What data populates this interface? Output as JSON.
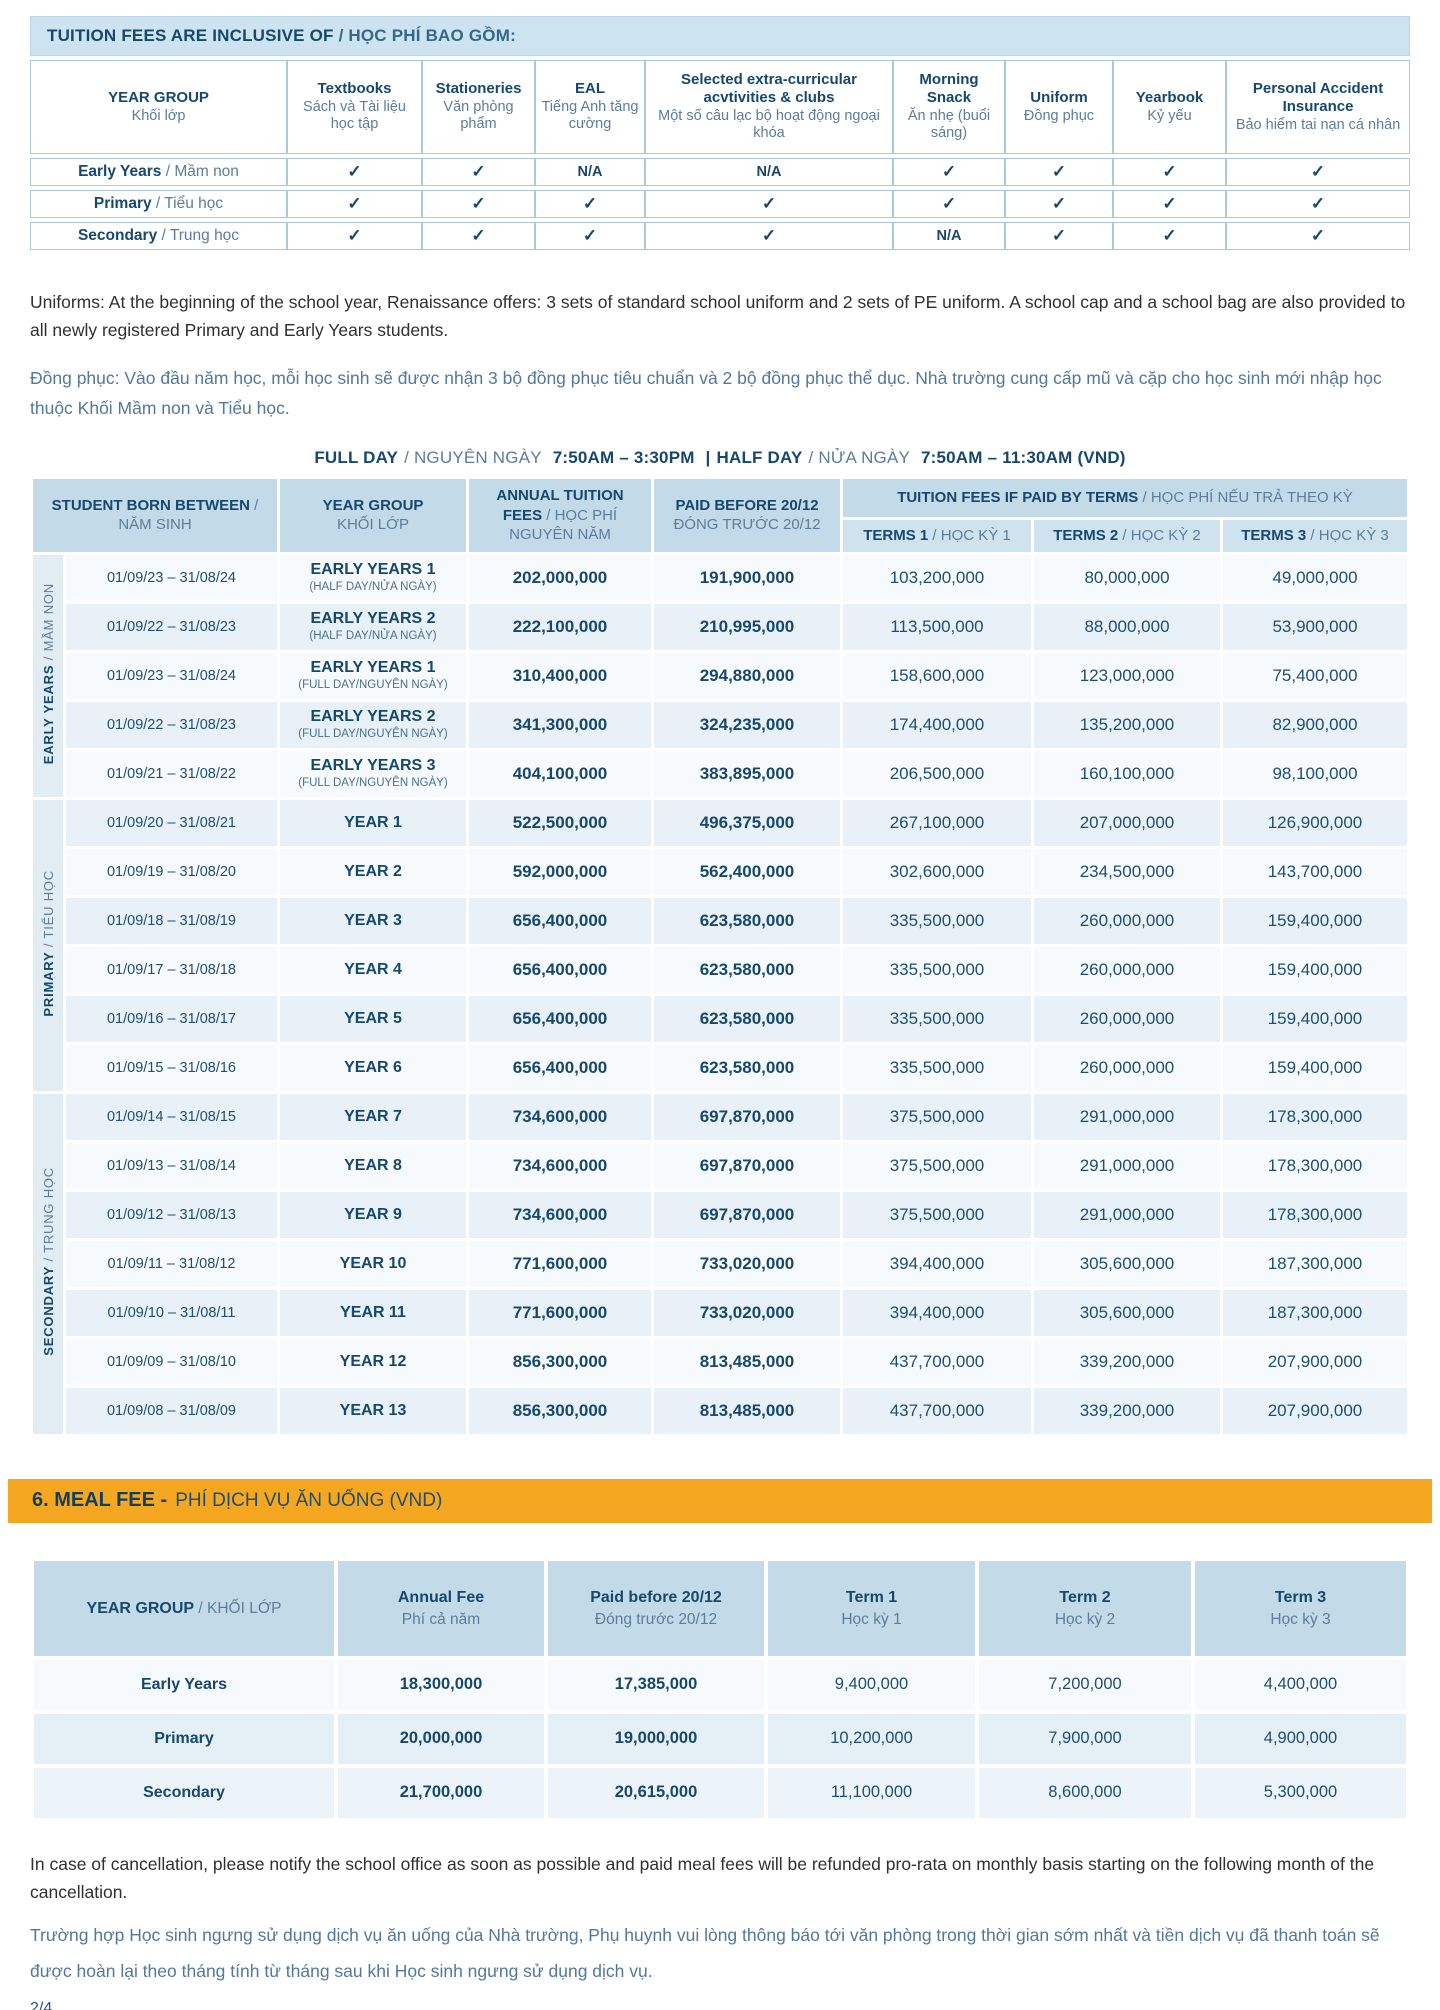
{
  "inclusive": {
    "title": {
      "en": "TUITION FEES ARE INCLUSIVE OF",
      "vi": " / HỌC PHÍ BAO GỒM:"
    },
    "columns": [
      {
        "en": "YEAR GROUP",
        "vi": "Khối lớp"
      },
      {
        "en": "Textbooks",
        "vi": "Sách và Tài liệu học tập"
      },
      {
        "en": "Stationeries",
        "vi": "Văn phòng phẩm"
      },
      {
        "en": "EAL",
        "vi": "Tiếng Anh tăng cường"
      },
      {
        "en": "Selected extra-curricular acvtivities & clubs",
        "vi": "Một số câu lạc bộ hoạt động ngoại khóa"
      },
      {
        "en": "Morning Snack",
        "vi": "Ăn nhẹ (buổi sáng)"
      },
      {
        "en": "Uniform",
        "vi": "Đồng phục"
      },
      {
        "en": "Yearbook",
        "vi": "Kỷ yếu"
      },
      {
        "en": "Personal Accident Insurance",
        "vi": "Bảo hiểm tai nạn cá nhân"
      }
    ],
    "rows": [
      {
        "en": "Early Years",
        "vi": "Mầm non",
        "cells": [
          "✓",
          "✓",
          "N/A",
          "N/A",
          "✓",
          "✓",
          "✓",
          "✓"
        ]
      },
      {
        "en": "Primary",
        "vi": "Tiểu học",
        "cells": [
          "✓",
          "✓",
          "✓",
          "✓",
          "✓",
          "✓",
          "✓",
          "✓"
        ]
      },
      {
        "en": "Secondary",
        "vi": "Trung học",
        "cells": [
          "✓",
          "✓",
          "✓",
          "✓",
          "N/A",
          "✓",
          "✓",
          "✓"
        ]
      }
    ]
  },
  "notes": {
    "uniform_en": "Uniforms: At the beginning of the school year, Renaissance offers: 3 sets of standard school uniform and 2 sets of PE uniform. A school cap and a school bag are also provided to all newly registered Primary and Early Years students.",
    "uniform_vi": "Đồng phục: Vào đầu năm học, mỗi học sinh sẽ được nhận 3 bộ đồng phục tiêu chuẩn và 2 bộ đồng phục thể dục. Nhà trường cung cấp mũ và cặp cho học sinh mới nhập học thuộc Khối Mầm non và Tiểu học."
  },
  "schedule": {
    "full_en": "FULL DAY",
    "full_vi": "/ NGUYÊN NGÀY",
    "full_time": "7:50AM – 3:30PM",
    "divider": "|",
    "half_en": "HALF DAY",
    "half_vi": "/ NỬA NGÀY",
    "half_time": "7:50AM – 11:30AM (VND)"
  },
  "tuition": {
    "headers": {
      "born": {
        "en": "STUDENT BORN BETWEEN",
        "vi": " / NĂM SINH"
      },
      "year_group": {
        "en": "YEAR GROUP",
        "vi": "KHỐI LỚP"
      },
      "annual": {
        "en": "ANNUAL TUITION FEES",
        "vi": " / HỌC PHÍ NGUYÊN NĂM"
      },
      "paid_before": {
        "en": "PAID BEFORE 20/12",
        "vi": "ĐÓNG TRƯỚC 20/12"
      },
      "terms_group": {
        "en": "TUITION FEES IF PAID BY TERMS",
        "vi": " / HỌC PHÍ NẾU TRẢ THEO KỲ"
      },
      "terms": [
        {
          "en": "TERMS 1",
          "vi": " / HỌC KỲ 1"
        },
        {
          "en": "TERMS 2",
          "vi": " / HỌC KỲ 2"
        },
        {
          "en": "TERMS 3",
          "vi": " / HỌC KỲ 3"
        }
      ]
    },
    "groups": [
      {
        "label_en": "EARLY YEARS",
        "label_vi": "/ MẦM NON",
        "rows": [
          {
            "born": "01/09/23 – 31/08/24",
            "year": "EARLY YEARS 1",
            "note": "(HALF DAY/NỬA NGÀY)",
            "annual": "202,000,000",
            "paid": "191,900,000",
            "t1": "103,200,000",
            "t2": "80,000,000",
            "t3": "49,000,000"
          },
          {
            "born": "01/09/22 – 31/08/23",
            "year": "EARLY YEARS 2",
            "note": "(HALF DAY/NỬA NGÀY)",
            "annual": "222,100,000",
            "paid": "210,995,000",
            "t1": "113,500,000",
            "t2": "88,000,000",
            "t3": "53,900,000"
          },
          {
            "born": "01/09/23 – 31/08/24",
            "year": "EARLY YEARS 1",
            "note": "(FULL DAY/NGUYÊN NGÀY)",
            "annual": "310,400,000",
            "paid": "294,880,000",
            "t1": "158,600,000",
            "t2": "123,000,000",
            "t3": "75,400,000"
          },
          {
            "born": "01/09/22 – 31/08/23",
            "year": "EARLY YEARS 2",
            "note": "(FULL DAY/NGUYÊN NGÀY)",
            "annual": "341,300,000",
            "paid": "324,235,000",
            "t1": "174,400,000",
            "t2": "135,200,000",
            "t3": "82,900,000"
          },
          {
            "born": "01/09/21 – 31/08/22",
            "year": "EARLY YEARS 3",
            "note": "(FULL DAY/NGUYÊN NGÀY)",
            "annual": "404,100,000",
            "paid": "383,895,000",
            "t1": "206,500,000",
            "t2": "160,100,000",
            "t3": "98,100,000"
          }
        ]
      },
      {
        "label_en": "PRIMARY",
        "label_vi": "/ TIỂU HỌC",
        "rows": [
          {
            "born": "01/09/20 – 31/08/21",
            "year": "YEAR 1",
            "annual": "522,500,000",
            "paid": "496,375,000",
            "t1": "267,100,000",
            "t2": "207,000,000",
            "t3": "126,900,000"
          },
          {
            "born": "01/09/19 – 31/08/20",
            "year": "YEAR 2",
            "annual": "592,000,000",
            "paid": "562,400,000",
            "t1": "302,600,000",
            "t2": "234,500,000",
            "t3": "143,700,000"
          },
          {
            "born": "01/09/18 – 31/08/19",
            "year": "YEAR 3",
            "annual": "656,400,000",
            "paid": "623,580,000",
            "t1": "335,500,000",
            "t2": "260,000,000",
            "t3": "159,400,000"
          },
          {
            "born": "01/09/17 – 31/08/18",
            "year": "YEAR 4",
            "annual": "656,400,000",
            "paid": "623,580,000",
            "t1": "335,500,000",
            "t2": "260,000,000",
            "t3": "159,400,000"
          },
          {
            "born": "01/09/16 – 31/08/17",
            "year": "YEAR 5",
            "annual": "656,400,000",
            "paid": "623,580,000",
            "t1": "335,500,000",
            "t2": "260,000,000",
            "t3": "159,400,000"
          },
          {
            "born": "01/09/15 – 31/08/16",
            "year": "YEAR 6",
            "annual": "656,400,000",
            "paid": "623,580,000",
            "t1": "335,500,000",
            "t2": "260,000,000",
            "t3": "159,400,000"
          }
        ]
      },
      {
        "label_en": "SECONDARY",
        "label_vi": "/ TRUNG HỌC",
        "rows": [
          {
            "born": "01/09/14 – 31/08/15",
            "year": "YEAR 7",
            "annual": "734,600,000",
            "paid": "697,870,000",
            "t1": "375,500,000",
            "t2": "291,000,000",
            "t3": "178,300,000"
          },
          {
            "born": "01/09/13 – 31/08/14",
            "year": "YEAR 8",
            "annual": "734,600,000",
            "paid": "697,870,000",
            "t1": "375,500,000",
            "t2": "291,000,000",
            "t3": "178,300,000"
          },
          {
            "born": "01/09/12 – 31/08/13",
            "year": "YEAR 9",
            "annual": "734,600,000",
            "paid": "697,870,000",
            "t1": "375,500,000",
            "t2": "291,000,000",
            "t3": "178,300,000"
          },
          {
            "born": "01/09/11 – 31/08/12",
            "year": "YEAR 10",
            "annual": "771,600,000",
            "paid": "733,020,000",
            "t1": "394,400,000",
            "t2": "305,600,000",
            "t3": "187,300,000"
          },
          {
            "born": "01/09/10 – 31/08/11",
            "year": "YEAR 11",
            "annual": "771,600,000",
            "paid": "733,020,000",
            "t1": "394,400,000",
            "t2": "305,600,000",
            "t3": "187,300,000"
          },
          {
            "born": "01/09/09 – 31/08/10",
            "year": "YEAR 12",
            "annual": "856,300,000",
            "paid": "813,485,000",
            "t1": "437,700,000",
            "t2": "339,200,000",
            "t3": "207,900,000"
          },
          {
            "born": "01/09/08 – 31/08/09",
            "year": "YEAR 13",
            "annual": "856,300,000",
            "paid": "813,485,000",
            "t1": "437,700,000",
            "t2": "339,200,000",
            "t3": "207,900,000"
          }
        ]
      }
    ]
  },
  "meal": {
    "title_en": "6. MEAL FEE -",
    "title_vi": "PHÍ DỊCH VỤ ĂN UỐNG (VND)",
    "headers": [
      {
        "en": "YEAR GROUP",
        "vi": " / KHỐI LỚP"
      },
      {
        "en": "Annual Fee",
        "vi": "Phí cả năm"
      },
      {
        "en": "Paid before 20/12",
        "vi": "Đóng trước 20/12"
      },
      {
        "en": "Term 1",
        "vi": "Học kỳ 1"
      },
      {
        "en": "Term 2",
        "vi": "Học kỳ 2"
      },
      {
        "en": "Term 3",
        "vi": "Học kỳ 3"
      }
    ],
    "rows": [
      {
        "label": "Early Years",
        "values": [
          "18,300,000",
          "17,385,000",
          "9,400,000",
          "7,200,000",
          "4,400,000"
        ]
      },
      {
        "label": "Primary",
        "values": [
          "20,000,000",
          "19,000,000",
          "10,200,000",
          "7,900,000",
          "4,900,000"
        ]
      },
      {
        "label": "Secondary",
        "values": [
          "21,700,000",
          "20,615,000",
          "11,100,000",
          "8,600,000",
          "5,300,000"
        ]
      }
    ]
  },
  "cancellation_en": "In case of cancellation, please notify the school office as soon as possible and paid meal fees will be refunded pro-rata on monthly basis starting on the following month of the cancellation.",
  "cancellation_vi": "Trường hợp Học sinh ngưng sử dụng dịch vụ ăn uống của Nhà trường, Phụ huynh vui lòng thông báo tới văn phòng trong thời gian sớm nhất và tiền dịch vụ đã thanh toán sẽ được hoàn lại theo tháng tính từ tháng sau khi Học sinh ngưng sử dụng dịch vụ.",
  "page_number": "2/4"
}
